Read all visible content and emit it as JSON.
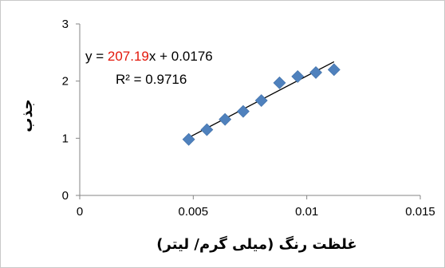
{
  "chart_data": {
    "type": "scatter",
    "xlabel": "غلظت رنگ (میلی گرم/ لیتر)",
    "ylabel": "جذب",
    "xlim": [
      0,
      0.015
    ],
    "ylim": [
      0,
      3
    ],
    "x_ticks": [
      "0",
      "0.005",
      "0.01",
      "0.015"
    ],
    "y_ticks": [
      "0",
      "1",
      "2",
      "3"
    ],
    "series": [
      {
        "marker": "diamond",
        "color": "#4f81bd",
        "x": [
          0.0048,
          0.0056,
          0.0064,
          0.0072,
          0.008,
          0.0088,
          0.0096,
          0.0104,
          0.0112
        ],
        "y": [
          0.98,
          1.15,
          1.33,
          1.47,
          1.66,
          1.97,
          2.08,
          2.15,
          2.2
        ]
      }
    ],
    "trendline": {
      "type": "linear",
      "slope": 207.19,
      "intercept": 0.0176,
      "color": "#000000",
      "x_range": [
        0.0048,
        0.0112
      ]
    },
    "equation": {
      "prefix": "y = ",
      "slope_text": "207.19",
      "suffix": "x + 0.0176",
      "slope_color": "#e3170a"
    },
    "r2_text": "R² = 0.9716",
    "grid": false
  }
}
